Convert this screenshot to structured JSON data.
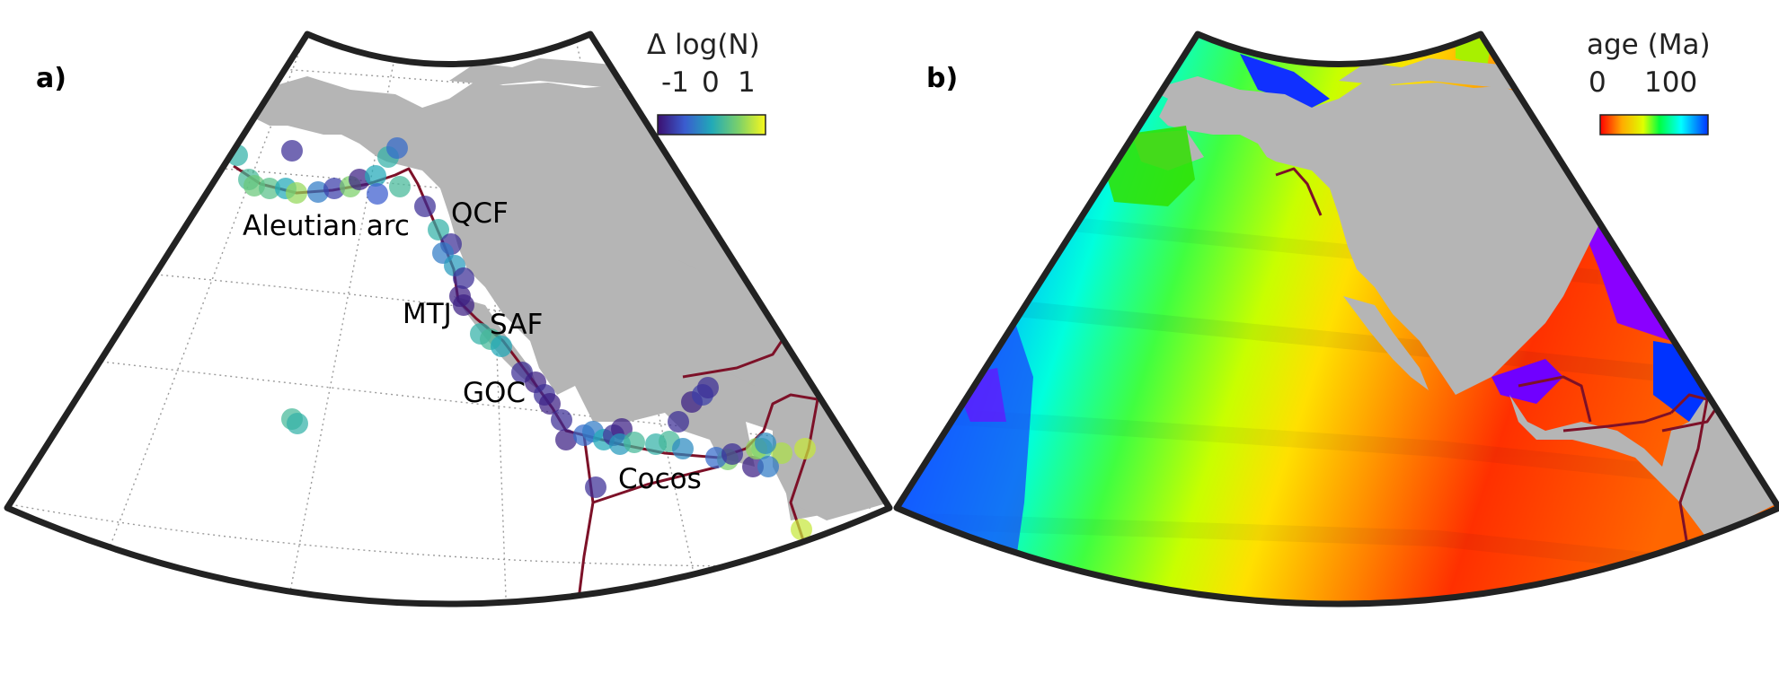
{
  "panel_a": {
    "label": "a)",
    "colorbar": {
      "title": "Δ log(N)",
      "ticks": [
        "-1",
        "0",
        "1"
      ]
    },
    "features": {
      "aleutian": "Aleutian arc",
      "qcf": "QCF",
      "mtj": "MTJ",
      "saf": "SAF",
      "goc": "GOC",
      "cocos": "Cocos"
    },
    "markers": [
      {
        "v": 0.55
      },
      {
        "v": 0.6
      },
      {
        "v": 0.1
      },
      {
        "v": 0.7
      },
      {
        "v": 0.65
      },
      {
        "v": 0.5
      },
      {
        "v": 0.8
      },
      {
        "v": 0.35
      },
      {
        "v": 0.15
      },
      {
        "v": 0.75
      },
      {
        "v": 0.05
      },
      {
        "v": 0.5
      },
      {
        "v": 0.55
      },
      {
        "v": 0.3
      },
      {
        "v": 0.25
      },
      {
        "v": 0.6
      },
      {
        "v": 0.1
      },
      {
        "v": 0.55
      },
      {
        "v": 0.1
      },
      {
        "v": 0.35
      },
      {
        "v": 0.45
      },
      {
        "v": 0.05
      },
      {
        "v": 0.05
      },
      {
        "v": 0.1
      },
      {
        "v": 0.55
      },
      {
        "v": 0.6
      },
      {
        "v": 0.5
      },
      {
        "v": 0.1
      },
      {
        "v": 0.05
      },
      {
        "v": 0.1
      },
      {
        "v": 0.05
      },
      {
        "v": 0.1
      },
      {
        "v": 0.05
      },
      {
        "v": 0.3
      },
      {
        "v": 0.35
      },
      {
        "v": 0.5
      },
      {
        "v": 0.1
      },
      {
        "v": 0.05
      },
      {
        "v": 0.45
      },
      {
        "v": 0.6
      },
      {
        "v": 0.1
      },
      {
        "v": 0.05
      },
      {
        "v": 0.15
      },
      {
        "v": 0.1
      },
      {
        "v": 0.55
      },
      {
        "v": 0.6
      },
      {
        "v": 0.4
      },
      {
        "v": 0.75
      },
      {
        "v": 0.3
      },
      {
        "v": 0.05
      },
      {
        "v": 0.1
      },
      {
        "v": 0.6
      },
      {
        "v": 0.8
      },
      {
        "v": 0.85
      },
      {
        "v": 0.35
      },
      {
        "v": 0.4
      },
      {
        "v": 0.9
      },
      {
        "v": 0.05
      },
      {
        "v": 0.9
      },
      {
        "v": 0.6
      },
      {
        "v": 0.55
      },
      {
        "v": 0.1
      }
    ]
  },
  "panel_b": {
    "label": "b)",
    "colorbar": {
      "title": "age (Ma)",
      "ticks": [
        "0",
        "100"
      ]
    }
  },
  "colors": {
    "land": "#b5b5b5",
    "plate_boundary": "#7d1128",
    "frame": "#222222",
    "ocean_a": "#ffffff"
  }
}
